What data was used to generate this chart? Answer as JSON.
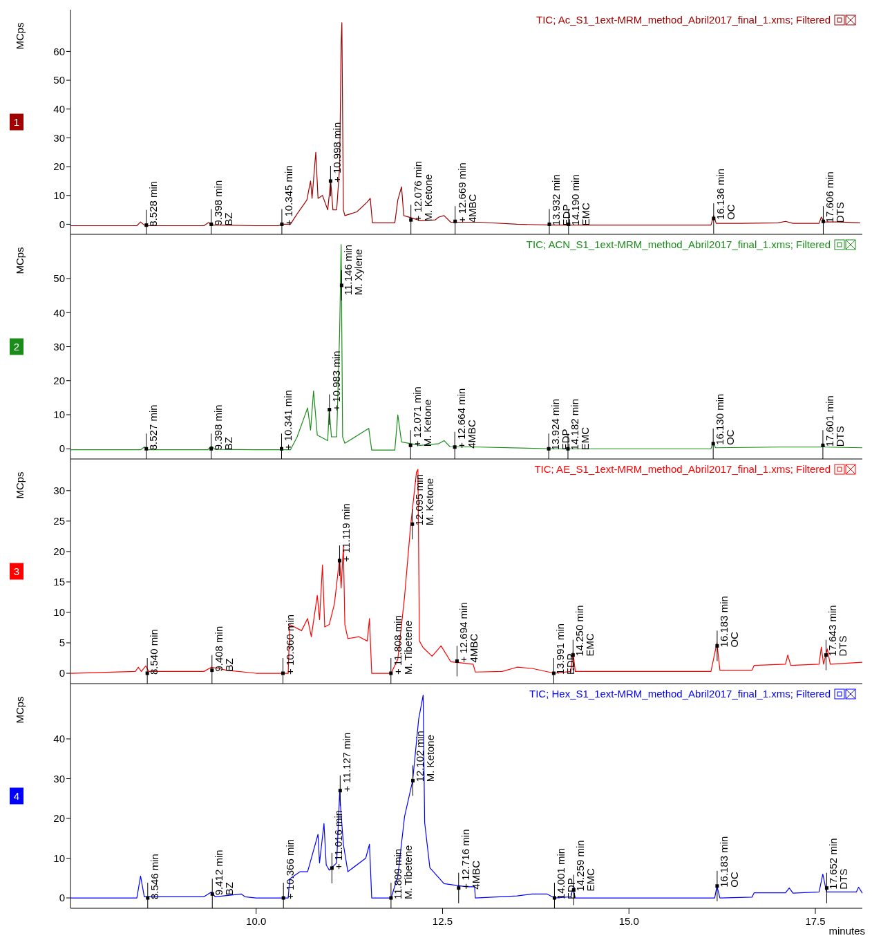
{
  "chart_data": [
    {
      "type": "line",
      "title": "TIC;  Ac_S1_1ext-MRM_method_Abril2017_final_1.xms;  Filtered",
      "ylabel": "MCps",
      "xlim": [
        7.51,
        18.13
      ],
      "ylim": [
        -3.5,
        74.5
      ],
      "yticks": [
        0,
        10,
        20,
        30,
        40,
        50,
        60
      ],
      "tick_labels": "y",
      "grid": false,
      "series": [
        {
          "color": "#a00000",
          "x": [
            7.51,
            8.4,
            8.45,
            8.5,
            8.55,
            9.3,
            9.36,
            9.42,
            9.5,
            10.0,
            10.3,
            10.34,
            10.46,
            10.55,
            10.68,
            10.73,
            10.75,
            10.8,
            10.83,
            10.89,
            10.96,
            11.0,
            11.03,
            11.08,
            11.12,
            11.14,
            11.15,
            11.17,
            11.19,
            11.35,
            11.49,
            11.53,
            11.56,
            11.86,
            11.9,
            11.95,
            11.98,
            12.21,
            12.4,
            12.45,
            12.52,
            12.61,
            13.0,
            13.5,
            14.0,
            15.0,
            16.1,
            16.136,
            16.17,
            16.5,
            17.0,
            17.1,
            17.2,
            17.55,
            17.58,
            17.62,
            17.8,
            18.1
          ],
          "values": [
            -0.5,
            -0.5,
            0.8,
            -0.3,
            -0.5,
            -0.5,
            0.6,
            -0.3,
            -0.3,
            -0.5,
            -0.5,
            0,
            0,
            3.6,
            8.4,
            15,
            9,
            25,
            9,
            10,
            5,
            15,
            5,
            5,
            20,
            63,
            70,
            5,
            3,
            4.3,
            7.7,
            9,
            0.5,
            0.5,
            8.4,
            13,
            3,
            1.2,
            1.5,
            2.5,
            3,
            0.7,
            0.7,
            0,
            -0.3,
            -0.3,
            -0.3,
            3,
            0.3,
            0.3,
            0.5,
            1,
            0.3,
            0.3,
            2.5,
            0.8,
            0.8,
            0.5
          ]
        }
      ],
      "annotations": [
        "1",
        {
          "text": "8.528 min",
          "x": 8.528,
          "y": -0.3
        },
        {
          "text": "9.398 min\nBZ",
          "x": 9.398,
          "y": 0
        },
        {
          "text": "+ 10.345 min",
          "x": 10.345,
          "y": 0
        },
        {
          "text": "+ 10.998 min",
          "x": 10.998,
          "y": 15
        },
        {
          "text": "+ 12.076 min\nM. Ketone",
          "x": 12.076,
          "y": 1.5
        },
        {
          "text": "+ 12.669 min\n4MBC",
          "x": 12.669,
          "y": 1
        },
        {
          "text": "13.932 min\nEDP",
          "x": 13.932,
          "y": 0
        },
        {
          "text": "14.190 min\nEMC",
          "x": 14.19,
          "y": 0
        },
        {
          "text": "16.136 min\nOC",
          "x": 16.136,
          "y": 2
        },
        {
          "text": "17.606 min\nDTS",
          "x": 17.606,
          "y": 1
        }
      ]
    },
    {
      "type": "line",
      "title": "TIC;  ACN_S1_1ext-MRM_method_Abril2017_final_1.xms;  Filtered",
      "ylabel": "MCps",
      "xlim": [
        7.51,
        18.13
      ],
      "ylim": [
        -3,
        63
      ],
      "yticks": [
        0,
        10,
        20,
        30,
        40,
        50
      ],
      "tick_labels": "y",
      "grid": false,
      "series": [
        {
          "color": "#1a8c1a",
          "x": [
            7.51,
            8.45,
            8.5,
            8.55,
            9.35,
            9.4,
            9.45,
            10.0,
            10.34,
            10.46,
            10.55,
            10.69,
            10.73,
            10.77,
            10.82,
            10.96,
            10.98,
            11.01,
            11.08,
            11.12,
            11.14,
            11.16,
            11.19,
            11.51,
            11.55,
            11.86,
            11.9,
            11.95,
            12.2,
            12.45,
            12.52,
            12.6,
            13.0,
            14.0,
            16.1,
            16.13,
            16.16,
            17.0,
            17.58,
            17.6,
            17.63,
            18.13
          ],
          "values": [
            -0.3,
            -0.3,
            0.5,
            -0.3,
            -0.3,
            0.8,
            -0.2,
            -0.3,
            -0.3,
            -0.3,
            3.5,
            12,
            5.5,
            17,
            4,
            2.4,
            11.6,
            3.5,
            3.5,
            34.5,
            60,
            3.5,
            1.6,
            6,
            -0.4,
            -0.4,
            10,
            2,
            1,
            1.5,
            2.4,
            0.6,
            0.5,
            0,
            0,
            2,
            0.3,
            0.5,
            0.5,
            1.5,
            0.5,
            0.3
          ]
        }
      ],
      "annotations": [
        "2",
        {
          "text": "8.527 min",
          "x": 8.527,
          "y": 0
        },
        {
          "text": "9.398 min\nBZ",
          "x": 9.398,
          "y": 0
        },
        {
          "text": "+ 10.341 min",
          "x": 10.341,
          "y": 0
        },
        {
          "text": "+ 10.983 min",
          "x": 10.983,
          "y": 11.5
        },
        {
          "text": "11.146 min\nM. Xylene",
          "x": 11.146,
          "y": 48
        },
        {
          "text": "+ 12.071 min\nM. Ketone",
          "x": 12.071,
          "y": 1
        },
        {
          "text": "+ 12.664 min\n4MBC",
          "x": 12.664,
          "y": 0.5
        },
        {
          "text": "13.924 min\nEDP",
          "x": 13.924,
          "y": 0
        },
        {
          "text": "14.182 min\nEMC",
          "x": 14.182,
          "y": 0
        },
        {
          "text": "16.130 min\nOC",
          "x": 16.13,
          "y": 1.5
        },
        {
          "text": "17.601 min\nDTS",
          "x": 17.601,
          "y": 1
        }
      ]
    },
    {
      "type": "line",
      "title": "TIC;  AE_S1_1ext-MRM_method_Abril2017_final_1.xms;  Filtered",
      "ylabel": "MCps",
      "xlim": [
        7.51,
        18.13
      ],
      "ylim": [
        -1.7,
        35.2
      ],
      "yticks": [
        0,
        5,
        10,
        15,
        20,
        25,
        30
      ],
      "tick_labels": "y",
      "grid": false,
      "series": [
        {
          "color": "#ff0000",
          "x": [
            7.51,
            8.38,
            8.42,
            8.46,
            8.52,
            8.56,
            9.3,
            9.4,
            9.5,
            9.6,
            10.0,
            10.4,
            10.43,
            10.45,
            10.61,
            10.69,
            10.74,
            10.82,
            10.85,
            10.89,
            10.92,
            10.98,
            11.05,
            11.12,
            11.14,
            11.17,
            11.19,
            11.23,
            11.38,
            11.49,
            11.52,
            11.55,
            11.81,
            11.9,
            11.99,
            12.07,
            12.15,
            12.17,
            12.19,
            12.24,
            12.36,
            12.48,
            12.61,
            12.91,
            12.94,
            13.3,
            13.5,
            13.7,
            14.0,
            14.22,
            14.25,
            14.28,
            16.1,
            16.18,
            16.22,
            16.65,
            16.68,
            17.1,
            17.13,
            17.17,
            17.55,
            17.58,
            17.61,
            17.66,
            17.7,
            18.13
          ],
          "values": [
            0,
            0.3,
            1,
            0.3,
            1.2,
            0.3,
            0.3,
            1,
            0.8,
            0.5,
            0,
            0,
            0,
            8,
            7,
            9,
            6,
            12.8,
            8.8,
            17.8,
            7.6,
            8,
            11.4,
            19,
            14,
            20.8,
            8,
            5.7,
            6,
            5.3,
            9,
            0,
            0,
            2.3,
            12.5,
            24,
            33,
            33.5,
            5.3,
            4.2,
            2.8,
            4.5,
            1.9,
            1.5,
            0.2,
            0.3,
            1,
            0.8,
            0,
            0.3,
            3.5,
            0.3,
            0.3,
            5,
            0.5,
            0.5,
            1.3,
            1.5,
            3,
            1.3,
            1.5,
            4.3,
            1.5,
            4,
            1.5,
            1.8
          ]
        }
      ],
      "annotations": [
        "3",
        {
          "text": "8.540 min",
          "x": 8.54,
          "y": 0
        },
        {
          "text": "9.408 min\nBZ",
          "x": 9.408,
          "y": 0.5
        },
        {
          "text": "+ 10.360 min",
          "x": 10.36,
          "y": 0
        },
        {
          "text": "+ 11.119 min",
          "x": 11.119,
          "y": 18.5
        },
        {
          "text": "+ 11.808 min\nM. Tibetene",
          "x": 11.808,
          "y": 0
        },
        {
          "text": "12.095 min\nM. Ketone",
          "x": 12.095,
          "y": 24.5
        },
        {
          "text": "+ 12.694 min\n4MBC",
          "x": 12.694,
          "y": 2
        },
        {
          "text": "13.991 min\nEDP",
          "x": 13.991,
          "y": 0
        },
        {
          "text": "14.250 min\nEMC",
          "x": 14.25,
          "y": 3
        },
        {
          "text": "16.183 min\nOC",
          "x": 16.183,
          "y": 4.5
        },
        {
          "text": "17.643 min\nDTS",
          "x": 17.643,
          "y": 3
        }
      ]
    },
    {
      "type": "line",
      "title": "TIC;  Hex_S1_1ext-MRM_method_Abril2017_final_1.xms;  Filtered",
      "ylabel": "MCps",
      "xlabel": "minutes",
      "xlim": [
        7.51,
        18.13
      ],
      "xticks": [
        {
          "value": 10,
          "label": "10.0"
        },
        {
          "value": 12.5,
          "label": "12.5"
        },
        {
          "value": 15,
          "label": "15.0"
        },
        {
          "value": 17.5,
          "label": "17.5"
        }
      ],
      "ylim": [
        -2.6,
        53.9
      ],
      "yticks": [
        0,
        10,
        20,
        30,
        40
      ],
      "grid": false,
      "series": [
        {
          "color": "#0000ff",
          "x": [
            7.51,
            8.4,
            8.45,
            8.5,
            9.3,
            9.4,
            9.45,
            9.8,
            9.85,
            10.0,
            10.4,
            10.43,
            10.45,
            10.59,
            10.69,
            10.83,
            10.85,
            10.91,
            10.94,
            10.98,
            11.08,
            11.12,
            11.14,
            11.17,
            11.23,
            11.47,
            11.52,
            11.55,
            11.81,
            11.9,
            11.99,
            12.1,
            12.18,
            12.24,
            12.26,
            12.33,
            12.52,
            12.82,
            12.93,
            12.94,
            13.5,
            13.7,
            13.9,
            14.0,
            14.22,
            14.25,
            14.28,
            16.15,
            16.18,
            16.22,
            16.65,
            16.68,
            17.1,
            17.15,
            17.2,
            17.55,
            17.6,
            17.65,
            18.05,
            18.08,
            18.13
          ],
          "values": [
            0,
            0,
            5.5,
            0.3,
            0.3,
            1.5,
            0.3,
            1,
            0.3,
            0,
            0,
            0,
            4.8,
            6.6,
            6.6,
            16,
            8.8,
            18.7,
            8.3,
            7,
            8.8,
            26.6,
            21,
            13.5,
            6.6,
            10,
            13.5,
            0,
            0,
            5.4,
            20.4,
            29.6,
            45,
            51,
            19,
            7.6,
            3.6,
            2.8,
            2.8,
            0,
            0.5,
            1,
            1,
            0,
            0.3,
            2.5,
            0,
            0,
            3,
            0,
            0.2,
            1.3,
            1.3,
            2.5,
            1.2,
            1.5,
            6,
            1.5,
            1.5,
            2.7,
            1.2
          ]
        }
      ],
      "annotations": [
        "4",
        {
          "text": "8.546 min",
          "x": 8.546,
          "y": 0
        },
        {
          "text": "9.412 min\nBZ",
          "x": 9.412,
          "y": 1
        },
        {
          "text": "+ 10.366 min",
          "x": 10.366,
          "y": 0
        },
        {
          "text": "+ 11.016 min",
          "x": 11.016,
          "y": 7.5
        },
        {
          "text": "+ 11.127 min",
          "x": 11.127,
          "y": 27
        },
        {
          "text": "11.809 min\nM. Tibetene",
          "x": 11.809,
          "y": 0
        },
        {
          "text": "12.102 min\nM. Ketone",
          "x": 12.102,
          "y": 29.5
        },
        {
          "text": "+ 12.716 min\n4MBC",
          "x": 12.716,
          "y": 2.5
        },
        {
          "text": "14.001 min\nEDP",
          "x": 14.001,
          "y": 0
        },
        {
          "text": "14.259 min\nEMC",
          "x": 14.259,
          "y": 2
        },
        {
          "text": "16.183 min\nOC",
          "x": 16.183,
          "y": 3
        },
        {
          "text": "17.652 min\nDTS",
          "x": 17.652,
          "y": 2.5
        }
      ]
    }
  ]
}
